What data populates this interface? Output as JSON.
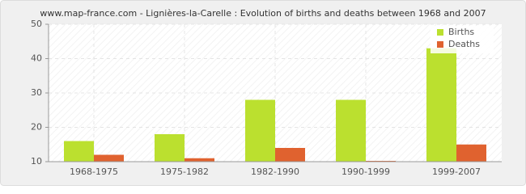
{
  "chart_data": {
    "type": "bar",
    "title": "www.map-france.com - Lignières-la-Carelle : Evolution of births and deaths between 1968 and 2007",
    "categories": [
      "1968-1975",
      "1975-1982",
      "1982-1990",
      "1990-1999",
      "1999-2007"
    ],
    "series": [
      {
        "name": "Births",
        "color": "#bbe02f",
        "values": [
          16,
          18,
          28,
          28,
          43
        ]
      },
      {
        "name": "Deaths",
        "color": "#e0622f",
        "values": [
          12,
          11,
          14,
          10,
          15
        ]
      }
    ],
    "ylim": [
      10,
      50
    ],
    "yticks": [
      10,
      20,
      30,
      40,
      50
    ],
    "grid": true,
    "legend": "top-right"
  }
}
